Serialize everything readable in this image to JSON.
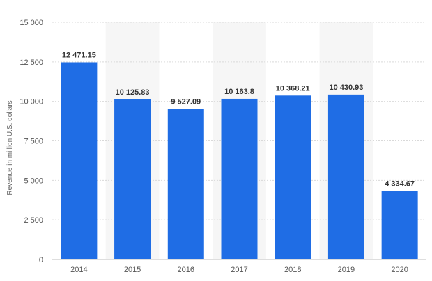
{
  "chart_data": {
    "type": "bar",
    "title": "",
    "xlabel": "",
    "ylabel": "Revenue in million U.S. dollars",
    "categories": [
      "2014",
      "2015",
      "2016",
      "2017",
      "2018",
      "2019",
      "2020"
    ],
    "values": [
      12471.15,
      10125.83,
      9527.09,
      10163.8,
      10368.21,
      10430.93,
      4334.67
    ],
    "value_labels": [
      "12 471.15",
      "10 125.83",
      "9 527.09",
      "10 163.8",
      "10 368.21",
      "10 430.93",
      "4 334.67"
    ],
    "ylim": [
      0,
      15000
    ],
    "yticks": [
      0,
      2500,
      5000,
      7500,
      10000,
      12500,
      15000
    ],
    "ytick_labels": [
      "0",
      "2 500",
      "5 000",
      "7 500",
      "10 000",
      "12 500",
      "15 000"
    ],
    "grid": true,
    "alternating_bands": true,
    "colors": {
      "bar": "#1f6de5",
      "band": "#f6f6f6",
      "grid": "#d9d9d9"
    }
  }
}
